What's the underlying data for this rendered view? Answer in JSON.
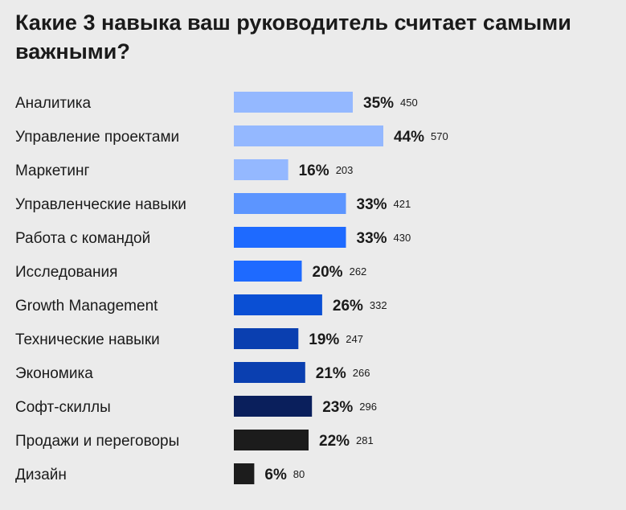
{
  "chart_data": {
    "type": "bar",
    "orientation": "horizontal",
    "title": "Какие 3 навыка ваш руководитель считает самыми важными?",
    "categories": [
      "Аналитика",
      "Управление проектами",
      "Маркетинг",
      "Управленческие навыки",
      "Работа с командой",
      "Исследования",
      "Growth Management",
      "Технические навыки",
      "Экономика",
      "Софт-скиллы",
      "Продажи и переговоры",
      "Дизайн"
    ],
    "values": [
      35,
      44,
      16,
      33,
      33,
      20,
      26,
      19,
      21,
      23,
      22,
      6
    ],
    "value_labels": [
      "35%",
      "44%",
      "16%",
      "33%",
      "33%",
      "20%",
      "26%",
      "19%",
      "21%",
      "23%",
      "22%",
      "6%"
    ],
    "counts": [
      "450",
      "570",
      "203",
      "421",
      "430",
      "262",
      "332",
      "247",
      "266",
      "296",
      "281",
      "80"
    ],
    "colors": [
      "#94b8ff",
      "#94b8ff",
      "#94b8ff",
      "#5c95ff",
      "#1e6aff",
      "#1e6aff",
      "#0a4fd4",
      "#0a3fb0",
      "#0a3fb0",
      "#0a1f5c",
      "#1c1c1c",
      "#1c1c1c"
    ],
    "xlim": [
      0,
      44
    ],
    "grid": false,
    "legend": "none"
  }
}
